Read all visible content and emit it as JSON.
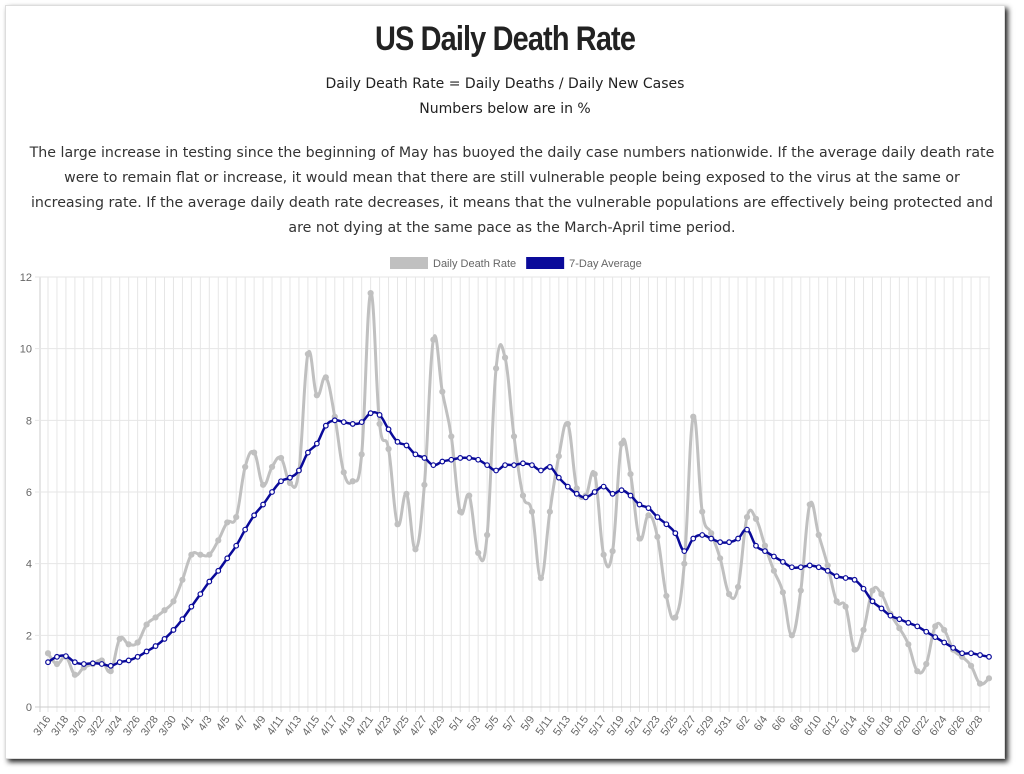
{
  "chart_data": {
    "type": "line",
    "title": "US Daily Death Rate",
    "subtitle": [
      "Daily Death Rate = Daily Deaths / Daily New Cases",
      "Numbers below are in %"
    ],
    "description": "The large increase in testing since the beginning of May has buoyed the daily case numbers nationwide. If the average daily death rate were to remain flat or increase, it would mean that there are still vulnerable people being exposed to the virus at the same or increasing rate. If the average daily death rate decreases, it means that the vulnerable populations are effectively being protected and are not dying at the same pace as the March-April time period.",
    "categories": [
      "3/16",
      null,
      "3/18",
      null,
      "3/20",
      null,
      "3/22",
      null,
      "3/24",
      null,
      "3/26",
      null,
      "3/28",
      null,
      "3/30",
      null,
      "4/1",
      null,
      "4/3",
      null,
      "4/5",
      null,
      "4/7",
      null,
      "4/9",
      null,
      "4/11",
      null,
      "4/13",
      null,
      "4/15",
      null,
      "4/17",
      null,
      "4/19",
      null,
      "4/21",
      null,
      "4/23",
      null,
      "4/25",
      null,
      "4/27",
      null,
      "4/29",
      null,
      "5/1",
      null,
      "5/3",
      null,
      "5/5",
      null,
      "5/7",
      null,
      "5/9",
      null,
      "5/11",
      null,
      "5/13",
      null,
      "5/15",
      null,
      "5/17",
      null,
      "5/19",
      null,
      "5/21",
      null,
      "5/23",
      null,
      "5/25",
      null,
      "5/27",
      null,
      "5/29",
      null,
      "5/31",
      null,
      "6/2",
      null,
      "6/4",
      null,
      "6/6",
      null,
      "6/8",
      null,
      "6/10",
      null,
      "6/12",
      null,
      "6/14",
      null,
      "6/16",
      null,
      "6/18",
      null,
      "6/20",
      null,
      "6/22",
      null,
      "6/24",
      null,
      "6/26",
      null,
      "6/28",
      null
    ],
    "series": [
      {
        "name": "Daily Death Rate",
        "color": "#c0c0c0",
        "values": [
          1.5,
          1.2,
          1.4,
          0.9,
          1.1,
          1.2,
          1.3,
          1.0,
          1.9,
          1.75,
          1.8,
          2.3,
          2.5,
          2.7,
          2.95,
          3.55,
          4.25,
          4.25,
          4.25,
          4.65,
          5.15,
          5.3,
          6.7,
          7.1,
          6.2,
          6.7,
          6.95,
          6.25,
          6.6,
          9.85,
          8.7,
          9.2,
          8.1,
          6.55,
          6.3,
          7.05,
          11.55,
          7.9,
          7.2,
          5.1,
          5.95,
          4.4,
          6.2,
          10.25,
          8.8,
          7.55,
          5.45,
          5.9,
          4.3,
          4.8,
          9.45,
          9.75,
          7.55,
          5.9,
          5.45,
          3.6,
          5.45,
          7.0,
          7.9,
          6.1,
          5.9,
          6.5,
          4.25,
          4.35,
          7.35,
          6.5,
          4.7,
          5.35,
          4.75,
          3.1,
          2.5,
          4.0,
          8.1,
          5.45,
          4.85,
          4.15,
          3.15,
          3.35,
          5.3,
          5.25,
          4.5,
          3.8,
          3.2,
          2.0,
          3.25,
          5.65,
          4.8,
          3.95,
          2.95,
          2.8,
          1.6,
          2.15,
          3.25,
          3.15,
          2.6,
          2.2,
          1.75,
          1.0,
          1.2,
          2.25,
          2.15,
          1.6,
          1.4,
          1.15,
          0.65,
          0.8
        ]
      },
      {
        "name": "7-Day Average",
        "color": "#0a0a9a",
        "values": [
          1.25,
          1.4,
          1.42,
          1.25,
          1.2,
          1.22,
          1.2,
          1.15,
          1.25,
          1.3,
          1.4,
          1.55,
          1.7,
          1.9,
          2.15,
          2.45,
          2.8,
          3.15,
          3.5,
          3.8,
          4.15,
          4.5,
          4.95,
          5.35,
          5.65,
          6.0,
          6.3,
          6.4,
          6.6,
          7.1,
          7.35,
          7.85,
          8.0,
          7.95,
          7.9,
          7.95,
          8.2,
          8.15,
          7.75,
          7.4,
          7.3,
          7.05,
          6.95,
          6.75,
          6.85,
          6.9,
          6.95,
          6.95,
          6.9,
          6.75,
          6.6,
          6.75,
          6.75,
          6.8,
          6.75,
          6.6,
          6.7,
          6.4,
          6.15,
          5.95,
          5.85,
          6.0,
          6.15,
          5.95,
          6.05,
          5.9,
          5.65,
          5.55,
          5.3,
          5.1,
          4.85,
          4.35,
          4.7,
          4.8,
          4.7,
          4.6,
          4.6,
          4.7,
          4.95,
          4.5,
          4.35,
          4.2,
          4.05,
          3.9,
          3.9,
          3.95,
          3.9,
          3.8,
          3.65,
          3.6,
          3.55,
          3.3,
          2.95,
          2.75,
          2.55,
          2.45,
          2.35,
          2.25,
          2.1,
          1.95,
          1.8,
          1.65,
          1.5,
          1.5,
          1.45,
          1.4
        ]
      }
    ],
    "ylim": [
      0,
      12
    ],
    "yticks": [
      0,
      2,
      4,
      6,
      8,
      10,
      12
    ],
    "grid": true,
    "legend": "top"
  }
}
